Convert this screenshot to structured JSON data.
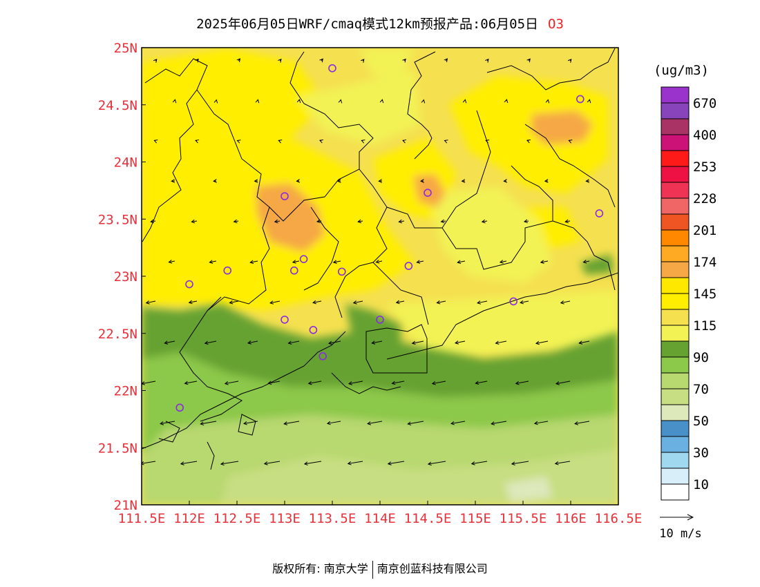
{
  "title": {
    "main": "2025年06月05日WRF/cmaq模式12km预报产品:06月05日",
    "species": "O3"
  },
  "colors": {
    "axis_label": "#e8303a",
    "title_species": "#ee2222",
    "station_marker": "#8a2be2",
    "map_line": "#000000"
  },
  "map": {
    "lon_range": [
      111.5,
      116.5
    ],
    "lat_range": [
      21.0,
      25.0
    ],
    "x_ticks": [
      "111.5E",
      "112E",
      "112.5E",
      "113E",
      "113.5E",
      "114E",
      "114.5E",
      "115E",
      "115.5E",
      "116E",
      "116.5E"
    ],
    "y_ticks": [
      "25N",
      "24.5N",
      "24N",
      "23.5N",
      "23N",
      "22.5N",
      "22N",
      "21.5N",
      "21N"
    ],
    "stations": [
      {
        "lon": 113.5,
        "lat": 24.82
      },
      {
        "lon": 116.1,
        "lat": 24.55
      },
      {
        "lon": 114.5,
        "lat": 23.73
      },
      {
        "lon": 113.0,
        "lat": 23.7
      },
      {
        "lon": 116.3,
        "lat": 23.55
      },
      {
        "lon": 113.2,
        "lat": 23.15
      },
      {
        "lon": 114.3,
        "lat": 23.09
      },
      {
        "lon": 112.4,
        "lat": 23.05
      },
      {
        "lon": 113.1,
        "lat": 23.05
      },
      {
        "lon": 113.6,
        "lat": 23.04
      },
      {
        "lon": 112.0,
        "lat": 22.93
      },
      {
        "lon": 115.4,
        "lat": 22.78
      },
      {
        "lon": 113.0,
        "lat": 22.62
      },
      {
        "lon": 114.0,
        "lat": 22.62
      },
      {
        "lon": 113.3,
        "lat": 22.53
      },
      {
        "lon": 113.4,
        "lat": 22.3
      },
      {
        "lon": 111.9,
        "lat": 21.85
      }
    ]
  },
  "legend": {
    "unit": "(ug/m3)",
    "bins": [
      {
        "color": "#9933cc",
        "label": "670"
      },
      {
        "color": "#8844bb",
        "label": ""
      },
      {
        "color": "#aa3366",
        "label": "400"
      },
      {
        "color": "#cc1177",
        "label": ""
      },
      {
        "color": "#ff1a1a",
        "label": "253"
      },
      {
        "color": "#ee1144",
        "label": ""
      },
      {
        "color": "#ee3355",
        "label": "228"
      },
      {
        "color": "#f06666",
        "label": ""
      },
      {
        "color": "#ee5522",
        "label": "201"
      },
      {
        "color": "#ff8800",
        "label": ""
      },
      {
        "color": "#ffaa22",
        "label": "174"
      },
      {
        "color": "#f5a845",
        "label": ""
      },
      {
        "color": "#ffe800",
        "label": "145"
      },
      {
        "color": "#ffee00",
        "label": ""
      },
      {
        "color": "#f5e050",
        "label": "115"
      },
      {
        "color": "#f2f255",
        "label": ""
      },
      {
        "color": "#66a232",
        "label": "90"
      },
      {
        "color": "#8cc84a",
        "label": ""
      },
      {
        "color": "#b8d870",
        "label": "70"
      },
      {
        "color": "#c8de82",
        "label": ""
      },
      {
        "color": "#dde8bb",
        "label": "50"
      },
      {
        "color": "#4a90c8",
        "label": ""
      },
      {
        "color": "#6ab0e0",
        "label": "30"
      },
      {
        "color": "#a0d8f0",
        "label": ""
      },
      {
        "color": "#d8eef8",
        "label": "10"
      },
      {
        "color": "#ffffff",
        "label": ""
      }
    ]
  },
  "wind": {
    "reference_label": "10 m/s"
  },
  "copyright": {
    "left": "版权所有: 南京大学",
    "right": "南京创蓝科技有限公司"
  }
}
